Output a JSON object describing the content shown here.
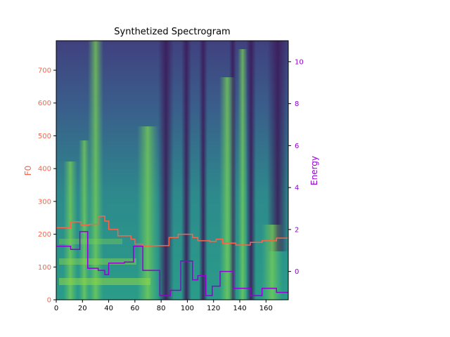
{
  "chart_data": {
    "type": "line",
    "title": "Synthetized Spectrogram",
    "xlabel": "",
    "ylabel_left": "F0",
    "ylabel_right": "Energy",
    "xlim": [
      0,
      177
    ],
    "ylim_left": [
      0,
      790
    ],
    "ylim_right": [
      -1.35,
      11
    ],
    "xticks": [
      0,
      20,
      40,
      60,
      80,
      100,
      120,
      140,
      160
    ],
    "yticks_left": [
      0,
      100,
      200,
      300,
      400,
      500,
      600,
      700
    ],
    "yticks_right": [
      0,
      2,
      4,
      6,
      8,
      10
    ],
    "colors": {
      "f0": "#ff6347",
      "energy": "#9400d3",
      "left_axis_labels": "#ff6347",
      "right_axis_labels": "#9400d3"
    },
    "background": "spectrogram (viridis colormap)",
    "series": [
      {
        "key": "f0",
        "name": "",
        "axis": "left",
        "step": true,
        "x": [
          0,
          8,
          11,
          19,
          25,
          32,
          37,
          40,
          47,
          57,
          60,
          66,
          72,
          86,
          93,
          104,
          108,
          117,
          122,
          127,
          137,
          148,
          157,
          168,
          177
        ],
        "y": [
          220,
          220,
          238,
          228,
          230,
          255,
          240,
          215,
          195,
          185,
          170,
          163,
          165,
          190,
          200,
          190,
          180,
          178,
          185,
          173,
          167,
          175,
          180,
          188,
          188
        ]
      },
      {
        "key": "energy",
        "name": "",
        "axis": "right",
        "step": true,
        "x": [
          0,
          11,
          18,
          24,
          32,
          37,
          40,
          52,
          59,
          66,
          79,
          87,
          95,
          104,
          108,
          114,
          119,
          125,
          135,
          148,
          157,
          168,
          177
        ],
        "y": [
          1.2,
          1.05,
          1.9,
          0.15,
          0.05,
          -0.15,
          0.4,
          0.45,
          1.2,
          0.05,
          -1.15,
          -0.9,
          0.5,
          -0.4,
          -0.2,
          -1.15,
          -0.7,
          0,
          -0.8,
          -1.15,
          -0.8,
          -1,
          -1
        ]
      }
    ]
  }
}
